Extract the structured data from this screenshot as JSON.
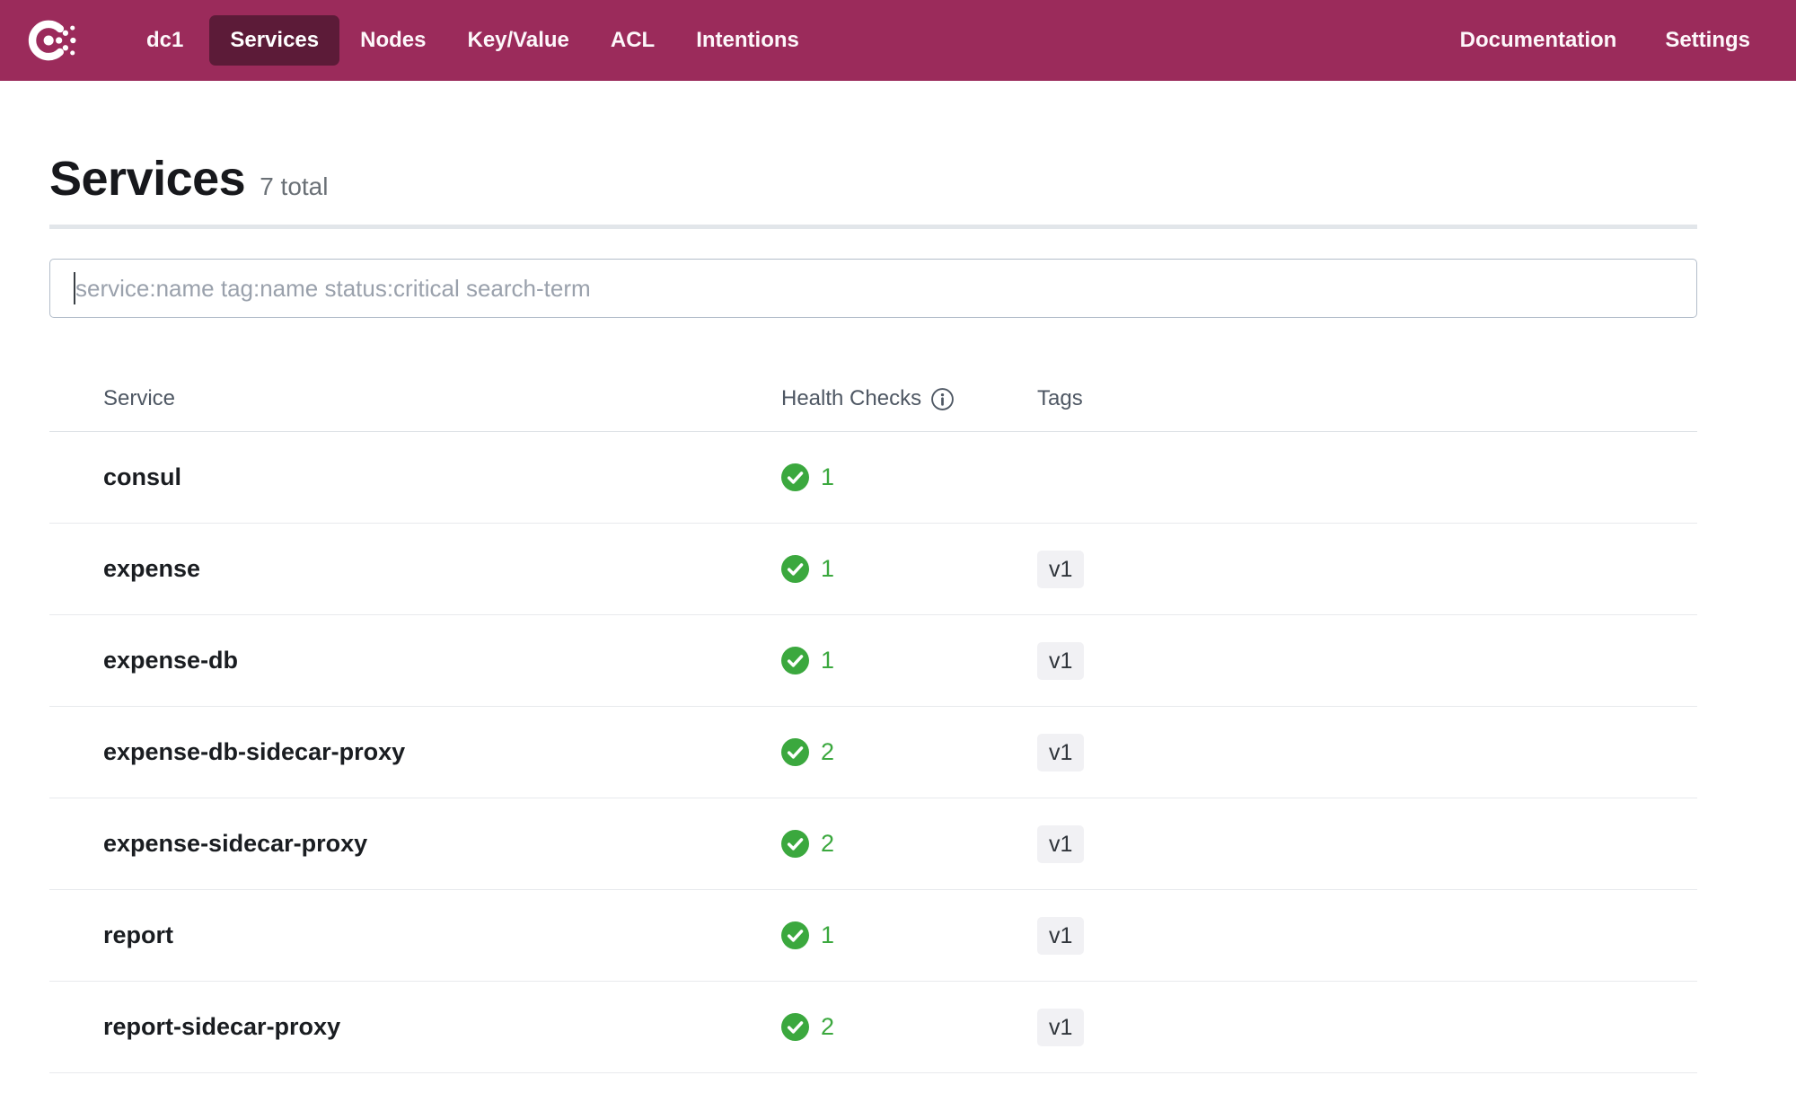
{
  "nav": {
    "datacenter": "dc1",
    "items": [
      {
        "label": "Services",
        "active": true
      },
      {
        "label": "Nodes",
        "active": false
      },
      {
        "label": "Key/Value",
        "active": false
      },
      {
        "label": "ACL",
        "active": false
      },
      {
        "label": "Intentions",
        "active": false
      }
    ],
    "right_items": [
      {
        "label": "Documentation"
      },
      {
        "label": "Settings"
      }
    ]
  },
  "page": {
    "title": "Services",
    "total_label": "7 total"
  },
  "search": {
    "value": "",
    "placeholder": "service:name tag:name status:critical search-term"
  },
  "table": {
    "columns": [
      "Service",
      "Health Checks",
      "Tags"
    ],
    "rows": [
      {
        "service": "consul",
        "health_checks": 1,
        "tags": []
      },
      {
        "service": "expense",
        "health_checks": 1,
        "tags": [
          "v1"
        ]
      },
      {
        "service": "expense-db",
        "health_checks": 1,
        "tags": [
          "v1"
        ]
      },
      {
        "service": "expense-db-sidecar-proxy",
        "health_checks": 2,
        "tags": [
          "v1"
        ]
      },
      {
        "service": "expense-sidecar-proxy",
        "health_checks": 2,
        "tags": [
          "v1"
        ]
      },
      {
        "service": "report",
        "health_checks": 1,
        "tags": [
          "v1"
        ]
      },
      {
        "service": "report-sidecar-proxy",
        "health_checks": 2,
        "tags": [
          "v1"
        ]
      }
    ]
  },
  "colors": {
    "nav_bg": "#9B2B5B",
    "nav_active_bg": "#5C1B38",
    "healthy_green": "#3BA83E"
  },
  "icons": {
    "logo": "consul-logo",
    "health_ok": "check-circle-icon",
    "header_info": "info-icon"
  }
}
